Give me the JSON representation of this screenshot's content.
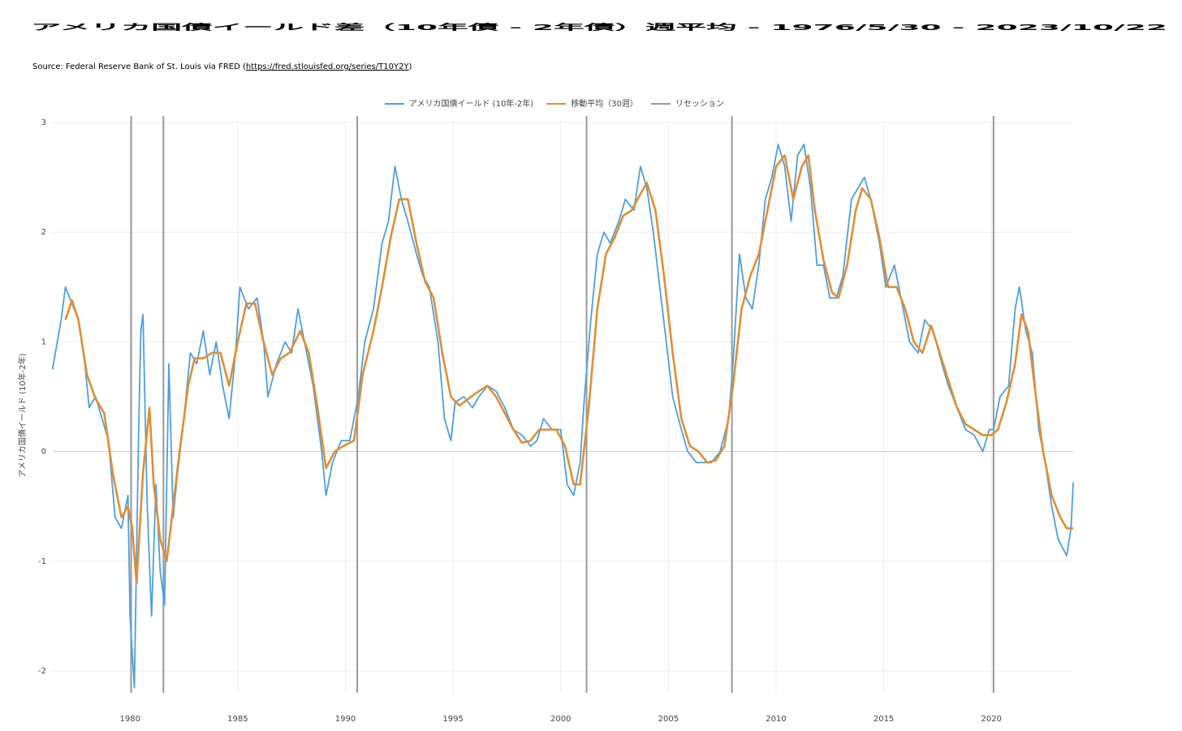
{
  "chart_data": {
    "type": "line",
    "title": "アメリカ国債イールド差（10年債 - 2年債）週平均 - 1976/5/30 - 2023/10/22",
    "source_prefix": "Source: Federal Reserve Bank of St. Louis via FRED (",
    "source_link": "https://fred.stlouisfed.org/series/T10Y2Y",
    "source_suffix": ")",
    "y_label": "アメリカ国債イールド (10年-2年)",
    "xlim": [
      1976.41,
      2023.8
    ],
    "ylim": [
      -2.2,
      3.0
    ],
    "xticks": [
      1980,
      1985,
      1990,
      1995,
      2000,
      2005,
      2010,
      2015,
      2020
    ],
    "yticks": [
      -2,
      -1,
      0,
      1,
      2,
      3
    ],
    "grid": true,
    "series": [
      {
        "name": "アメリカ国債イールド (10年-2年)",
        "color": "#4e9fe0",
        "x": [
          1976.4,
          1976.8,
          1977.0,
          1977.3,
          1977.6,
          1977.9,
          1978.1,
          1978.4,
          1978.7,
          1979.0,
          1979.3,
          1979.6,
          1979.9,
          1980.0,
          1980.2,
          1980.4,
          1980.5,
          1980.6,
          1980.8,
          1981.0,
          1981.2,
          1981.4,
          1981.6,
          1981.8,
          1982.0,
          1982.2,
          1982.5,
          1982.8,
          1983.1,
          1983.4,
          1983.7,
          1984.0,
          1984.3,
          1984.6,
          1984.9,
          1985.1,
          1985.5,
          1985.9,
          1986.2,
          1986.4,
          1986.8,
          1987.2,
          1987.5,
          1987.8,
          1988.1,
          1988.5,
          1988.9,
          1989.1,
          1989.4,
          1989.8,
          1990.2,
          1990.6,
          1990.9,
          1991.3,
          1991.7,
          1992.0,
          1992.3,
          1992.6,
          1992.9,
          1993.3,
          1993.6,
          1993.9,
          1994.3,
          1994.6,
          1994.9,
          1995.1,
          1995.5,
          1995.9,
          1996.2,
          1996.6,
          1997.0,
          1997.4,
          1997.8,
          1998.2,
          1998.6,
          1998.9,
          1999.2,
          1999.6,
          2000.0,
          2000.3,
          2000.6,
          2000.9,
          2001.1,
          2001.4,
          2001.7,
          2002.0,
          2002.3,
          2002.7,
          2003.0,
          2003.4,
          2003.7,
          2004.0,
          2004.3,
          2004.6,
          2004.9,
          2005.2,
          2005.6,
          2005.9,
          2006.3,
          2006.7,
          2007.0,
          2007.4,
          2007.8,
          2008.0,
          2008.3,
          2008.6,
          2008.9,
          2009.2,
          2009.5,
          2009.8,
          2010.1,
          2010.4,
          2010.7,
          2011.0,
          2011.3,
          2011.6,
          2011.9,
          2012.2,
          2012.5,
          2012.8,
          2013.1,
          2013.5,
          2013.8,
          2014.1,
          2014.4,
          2014.8,
          2015.1,
          2015.5,
          2015.9,
          2016.2,
          2016.6,
          2016.9,
          2017.3,
          2017.7,
          2018.0,
          2018.4,
          2018.8,
          2019.2,
          2019.6,
          2019.9,
          2020.1,
          2020.4,
          2020.8,
          2021.1,
          2021.3,
          2021.6,
          2021.9,
          2022.2,
          2022.5,
          2022.8,
          2023.1,
          2023.5,
          2023.7,
          2023.8
        ],
        "values": [
          0.75,
          1.2,
          1.5,
          1.35,
          1.2,
          0.8,
          0.4,
          0.5,
          0.3,
          0.1,
          -0.6,
          -0.7,
          -0.4,
          -1.5,
          -2.15,
          0.2,
          1.1,
          1.25,
          -0.5,
          -1.5,
          -0.3,
          -1.1,
          -1.4,
          0.8,
          -0.6,
          -0.2,
          0.3,
          0.9,
          0.8,
          1.1,
          0.7,
          1.0,
          0.6,
          0.3,
          0.9,
          1.5,
          1.3,
          1.4,
          1.0,
          0.5,
          0.8,
          1.0,
          0.9,
          1.3,
          1.0,
          0.6,
          0.0,
          -0.4,
          -0.1,
          0.1,
          0.1,
          0.5,
          1.0,
          1.3,
          1.9,
          2.1,
          2.6,
          2.3,
          2.1,
          1.8,
          1.6,
          1.5,
          1.0,
          0.3,
          0.1,
          0.45,
          0.5,
          0.4,
          0.5,
          0.6,
          0.55,
          0.4,
          0.2,
          0.15,
          0.05,
          0.1,
          0.3,
          0.2,
          0.2,
          -0.3,
          -0.4,
          -0.1,
          0.5,
          1.2,
          1.8,
          2.0,
          1.9,
          2.1,
          2.3,
          2.2,
          2.6,
          2.4,
          2.0,
          1.5,
          1.0,
          0.5,
          0.2,
          0.0,
          -0.1,
          -0.1,
          -0.1,
          0.0,
          0.3,
          0.8,
          1.8,
          1.4,
          1.3,
          1.7,
          2.3,
          2.5,
          2.8,
          2.6,
          2.1,
          2.7,
          2.8,
          2.4,
          1.7,
          1.7,
          1.4,
          1.4,
          1.6,
          2.3,
          2.4,
          2.5,
          2.3,
          1.9,
          1.5,
          1.7,
          1.3,
          1.0,
          0.9,
          1.2,
          1.1,
          0.8,
          0.6,
          0.4,
          0.2,
          0.15,
          0.0,
          0.2,
          0.2,
          0.5,
          0.6,
          1.3,
          1.5,
          1.1,
          0.9,
          0.2,
          -0.1,
          -0.5,
          -0.8,
          -0.95,
          -0.7,
          -0.28
        ]
      },
      {
        "name": "移動平均（30週）",
        "color": "#e08e35",
        "x": [
          1977.0,
          1977.3,
          1977.6,
          1978.0,
          1978.4,
          1978.8,
          1979.2,
          1979.6,
          1979.9,
          1980.1,
          1980.3,
          1980.6,
          1980.9,
          1981.1,
          1981.4,
          1981.7,
          1982.0,
          1982.3,
          1982.7,
          1983.0,
          1983.4,
          1983.8,
          1984.2,
          1984.6,
          1985.0,
          1985.4,
          1985.8,
          1986.2,
          1986.6,
          1987.0,
          1987.4,
          1987.9,
          1988.3,
          1988.7,
          1989.1,
          1989.5,
          1989.9,
          1990.4,
          1990.8,
          1991.3,
          1991.7,
          1992.1,
          1992.5,
          1992.9,
          1993.3,
          1993.7,
          1994.1,
          1994.5,
          1994.9,
          1995.3,
          1995.7,
          1996.2,
          1996.6,
          1997.0,
          1997.4,
          1997.8,
          1998.2,
          1998.6,
          1999.0,
          1999.4,
          1999.8,
          2000.2,
          2000.6,
          2000.9,
          2001.3,
          2001.7,
          2002.1,
          2002.5,
          2002.9,
          2003.3,
          2003.7,
          2004.0,
          2004.4,
          2004.8,
          2005.2,
          2005.6,
          2006.0,
          2006.4,
          2006.8,
          2007.2,
          2007.6,
          2008.0,
          2008.4,
          2008.8,
          2009.2,
          2009.6,
          2010.0,
          2010.4,
          2010.8,
          2011.2,
          2011.5,
          2011.8,
          2012.2,
          2012.6,
          2012.9,
          2013.3,
          2013.7,
          2014.0,
          2014.4,
          2014.8,
          2015.2,
          2015.6,
          2016.0,
          2016.4,
          2016.8,
          2017.2,
          2017.6,
          2018.0,
          2018.4,
          2018.8,
          2019.2,
          2019.6,
          2020.0,
          2020.3,
          2020.7,
          2021.1,
          2021.4,
          2021.7,
          2022.0,
          2022.4,
          2022.8,
          2023.2,
          2023.5,
          2023.8
        ],
        "values": [
          1.2,
          1.38,
          1.2,
          0.7,
          0.48,
          0.35,
          -0.2,
          -0.6,
          -0.5,
          -0.7,
          -1.2,
          -0.2,
          0.4,
          -0.3,
          -0.8,
          -1.0,
          -0.5,
          0.0,
          0.6,
          0.85,
          0.85,
          0.9,
          0.9,
          0.6,
          1.0,
          1.35,
          1.35,
          1.0,
          0.7,
          0.85,
          0.9,
          1.1,
          0.9,
          0.4,
          -0.15,
          0.0,
          0.05,
          0.1,
          0.7,
          1.1,
          1.5,
          1.95,
          2.3,
          2.3,
          1.9,
          1.55,
          1.4,
          0.9,
          0.5,
          0.42,
          0.48,
          0.55,
          0.6,
          0.5,
          0.35,
          0.2,
          0.08,
          0.1,
          0.2,
          0.2,
          0.2,
          0.05,
          -0.3,
          -0.3,
          0.4,
          1.3,
          1.8,
          1.95,
          2.15,
          2.2,
          2.35,
          2.45,
          2.2,
          1.6,
          0.9,
          0.3,
          0.05,
          0.0,
          -0.1,
          -0.08,
          0.05,
          0.6,
          1.3,
          1.6,
          1.8,
          2.2,
          2.6,
          2.7,
          2.3,
          2.6,
          2.7,
          2.2,
          1.75,
          1.45,
          1.4,
          1.7,
          2.2,
          2.4,
          2.3,
          1.95,
          1.5,
          1.5,
          1.3,
          1.0,
          0.9,
          1.15,
          0.9,
          0.65,
          0.4,
          0.25,
          0.2,
          0.15,
          0.15,
          0.2,
          0.45,
          0.8,
          1.25,
          1.1,
          0.6,
          0.0,
          -0.4,
          -0.6,
          -0.7,
          -0.7
        ]
      }
    ],
    "recessions": {
      "name": "リセッション",
      "color": "#999999",
      "x": [
        1980.05,
        1981.55,
        1990.55,
        2001.2,
        2007.95,
        2020.1
      ]
    }
  }
}
